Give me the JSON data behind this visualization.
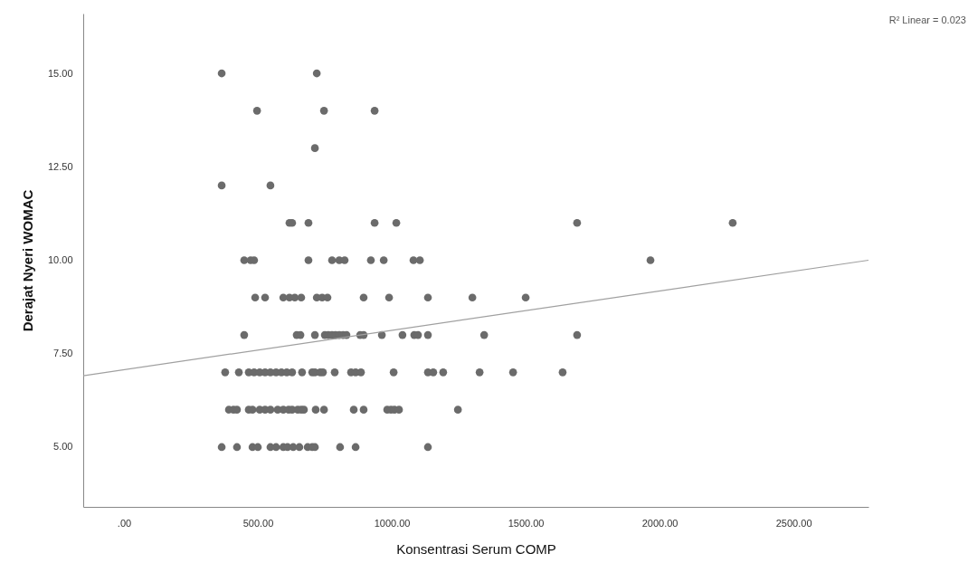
{
  "chart_data": {
    "type": "scatter",
    "xlabel": "Konsentrasi Serum COMP",
    "ylabel": "Derajat Nyeri WOMAC",
    "annotations": [
      "R² Linear = 0.023"
    ],
    "xlim": [
      -152,
      2780
    ],
    "ylim": [
      3.4,
      16.6
    ],
    "xticks": [
      {
        "value": 0,
        "label": ".00"
      },
      {
        "value": 500,
        "label": "500.00"
      },
      {
        "value": 1000,
        "label": "1000.00"
      },
      {
        "value": 1500,
        "label": "1500.00"
      },
      {
        "value": 2000,
        "label": "2000.00"
      },
      {
        "value": 2500,
        "label": "2500.00"
      }
    ],
    "yticks": [
      {
        "value": 5,
        "label": "5.00"
      },
      {
        "value": 7.5,
        "label": "7.50"
      },
      {
        "value": 10,
        "label": "10.00"
      },
      {
        "value": 12.5,
        "label": "12.50"
      },
      {
        "value": 15,
        "label": "15.00"
      }
    ],
    "grid": false,
    "series": [
      {
        "color": "#6b6b6b",
        "marker": "circle",
        "x": [
          365,
          720,
          497,
          747,
          936,
          713,
          365,
          547,
          618,
          628,
          689,
          936,
          1017,
          1692,
          2273,
          449,
          473,
          486,
          689,
          777,
          804,
          824,
          922,
          970,
          1081,
          1105,
          1966,
          490,
          527,
          595,
          618,
          638,
          662,
          720,
          740,
          760,
          895,
          990,
          1135,
          1301,
          1500,
          449,
          645,
          659,
          713,
          750,
          763,
          777,
          790,
          804,
          818,
          831,
          882,
          895,
          963,
          1040,
          1084,
          1098,
          1135,
          1345,
          1692,
          378,
          429,
          466,
          486,
          507,
          527,
          547,
          568,
          588,
          608,
          628,
          665,
          703,
          713,
          733,
          743,
          787,
          848,
          865,
          885,
          1007,
          1135,
          1155,
          1192,
          1328,
          1453,
          1638,
          392,
          409,
          422,
          466,
          480,
          507,
          527,
          547,
          574,
          595,
          615,
          628,
          649,
          662,
          672,
          716,
          747,
          858,
          895,
          983,
          997,
          1010,
          1027,
          1247,
          365,
          422,
          480,
          500,
          547,
          568,
          595,
          611,
          632,
          655,
          686,
          703,
          713,
          807,
          865,
          1135
        ],
        "values": [
          15,
          15,
          14,
          14,
          14,
          13,
          12,
          12,
          11,
          11,
          11,
          11,
          11,
          11,
          11,
          10,
          10,
          10,
          10,
          10,
          10,
          10,
          10,
          10,
          10,
          10,
          10,
          9,
          9,
          9,
          9,
          9,
          9,
          9,
          9,
          9,
          9,
          9,
          9,
          9,
          9,
          8,
          8,
          8,
          8,
          8,
          8,
          8,
          8,
          8,
          8,
          8,
          8,
          8,
          8,
          8,
          8,
          8,
          8,
          8,
          8,
          7,
          7,
          7,
          7,
          7,
          7,
          7,
          7,
          7,
          7,
          7,
          7,
          7,
          7,
          7,
          7,
          7,
          7,
          7,
          7,
          7,
          7,
          7,
          7,
          7,
          7,
          7,
          6,
          6,
          6,
          6,
          6,
          6,
          6,
          6,
          6,
          6,
          6,
          6,
          6,
          6,
          6,
          6,
          6,
          6,
          6,
          6,
          6,
          6,
          6,
          6,
          5,
          5,
          5,
          5,
          5,
          5,
          5,
          5,
          5,
          5,
          5,
          5,
          5,
          5,
          5,
          5
        ]
      },
      {
        "type": "line",
        "color": "#a0a0a0",
        "x": [
          -152,
          2780
        ],
        "values": [
          6.91,
          10.0
        ]
      }
    ]
  }
}
